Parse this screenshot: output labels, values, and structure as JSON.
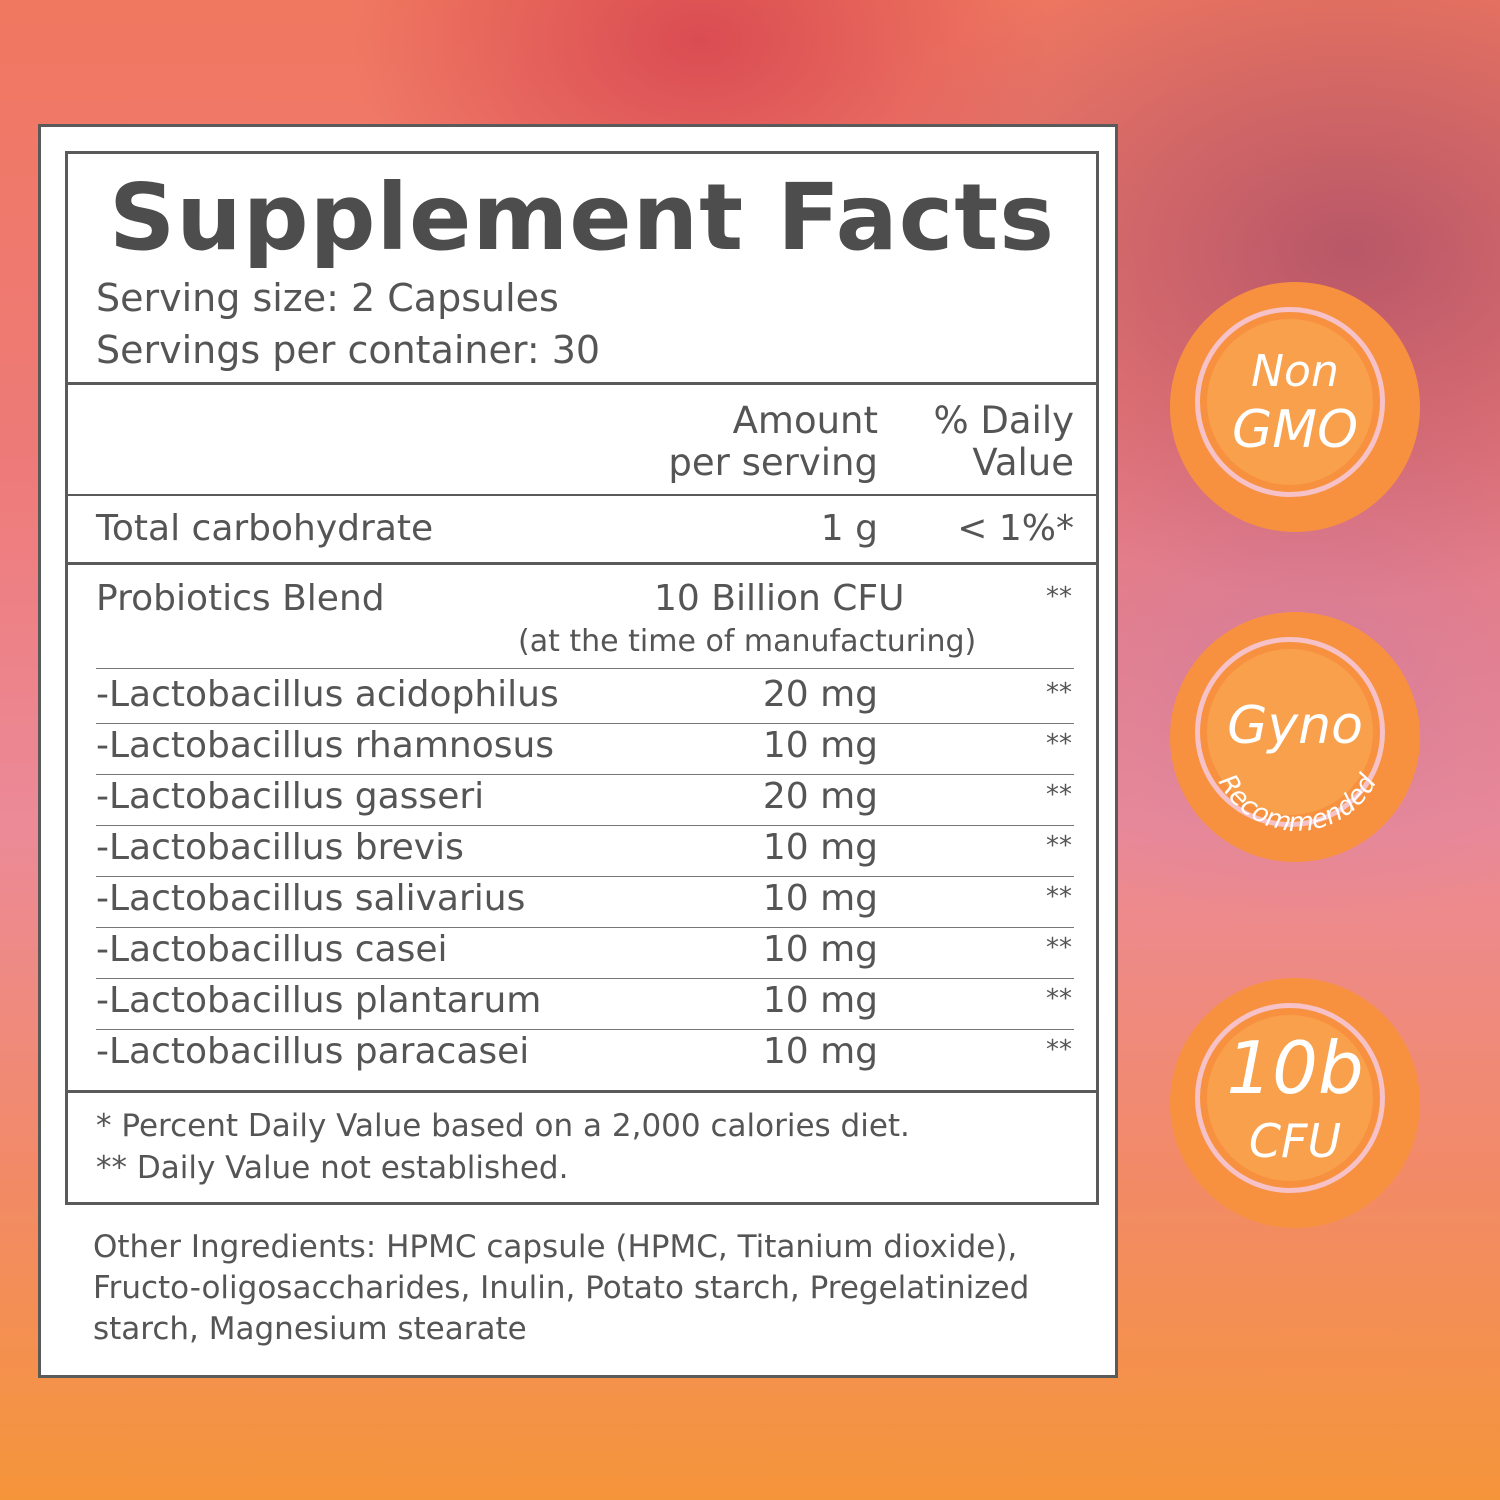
{
  "facts": {
    "title": "Supplement Facts",
    "serving_size": "Serving size: 2 Capsules",
    "servings_per_container": "Servings per container: 30",
    "header_amount_1": "Amount",
    "header_amount_2": "per serving",
    "header_dv_1": "% Daily",
    "header_dv_2": "Value",
    "carb": {
      "name": "Total carbohydrate",
      "amount": "1 g",
      "dv": "< 1%*"
    },
    "blend": {
      "name": "Probiotics Blend",
      "amount": "10 Billion CFU",
      "sub": "(at the time of manufacturing)",
      "dv": "**"
    },
    "strains": [
      {
        "name": "-Lactobacillus acidophilus",
        "amount": "20 mg",
        "dv": "**"
      },
      {
        "name": "-Lactobacillus rhamnosus",
        "amount": "10 mg",
        "dv": "**"
      },
      {
        "name": "-Lactobacillus gasseri",
        "amount": "20 mg",
        "dv": "**"
      },
      {
        "name": "-Lactobacillus brevis",
        "amount": "10 mg",
        "dv": "**"
      },
      {
        "name": "-Lactobacillus salivarius",
        "amount": "10 mg",
        "dv": "**"
      },
      {
        "name": "-Lactobacillus casei",
        "amount": "10 mg",
        "dv": "**"
      },
      {
        "name": "-Lactobacillus plantarum",
        "amount": "10 mg",
        "dv": "**"
      },
      {
        "name": "-Lactobacillus paracasei",
        "amount": "10 mg",
        "dv": "**"
      }
    ],
    "footnote_1": "* Percent Daily Value based on a 2,000 calories diet.",
    "footnote_2": "** Daily Value not established."
  },
  "other_ingredients": "Other Ingredients: HPMC capsule (HPMC, Titanium dioxide), Fructo-oligosaccharides, Inulin, Potato starch, Pregelatinized starch, Magnesium stearate",
  "badges": [
    {
      "line1": "Non",
      "line2": "GMO"
    },
    {
      "line1": "Gyno",
      "line2": "Recommended"
    },
    {
      "line1": "10b",
      "line2": "CFU"
    }
  ],
  "colors": {
    "badge": "#f7913f",
    "badge_ring": "#f6c2c8",
    "text": "#555555",
    "border": "#5a5a5a"
  }
}
